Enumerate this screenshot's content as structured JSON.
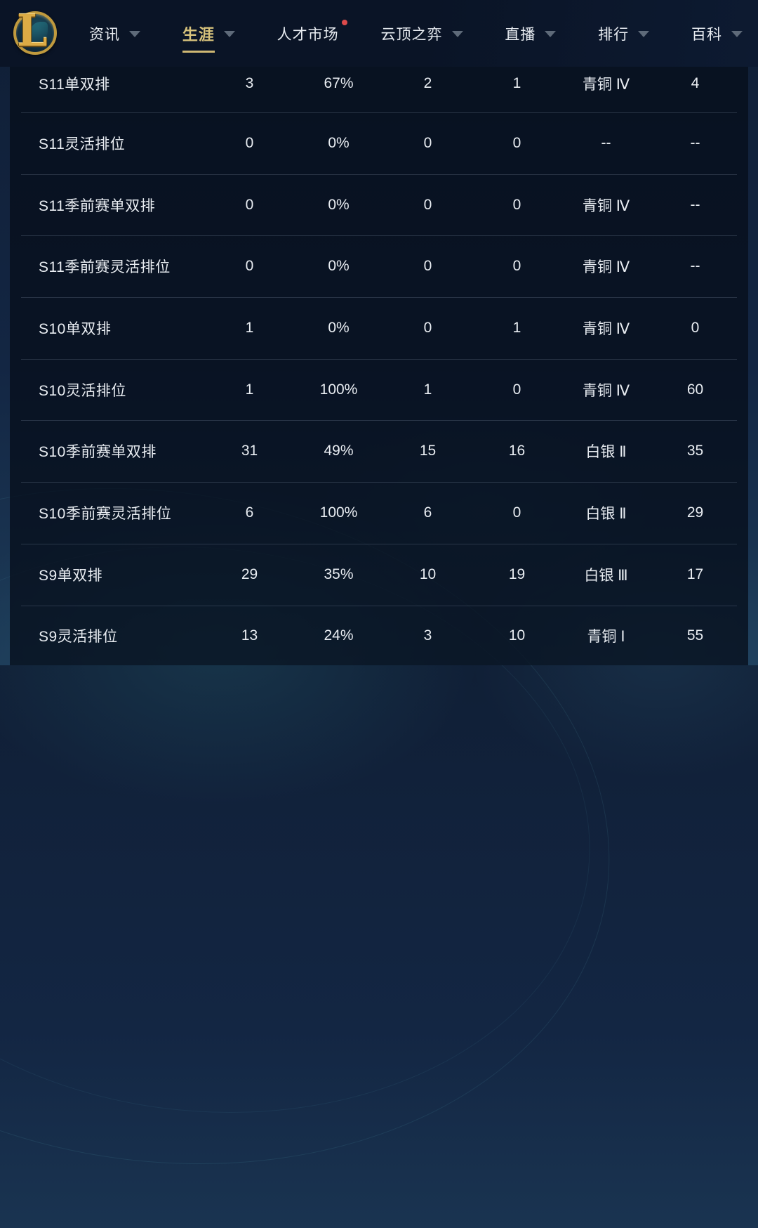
{
  "nav": {
    "logo_letter": "L",
    "items": [
      {
        "label": "资讯",
        "trailing": "chevron",
        "active": false
      },
      {
        "label": "生涯",
        "trailing": "chevron",
        "active": true
      },
      {
        "label": "人才市场",
        "trailing": "dot",
        "active": false
      },
      {
        "label": "云顶之弈",
        "trailing": "chevron",
        "active": false
      },
      {
        "label": "直播",
        "trailing": "chevron",
        "active": false
      },
      {
        "label": "排行",
        "trailing": "chevron",
        "active": false
      },
      {
        "label": "百科",
        "trailing": "chevron",
        "active": false
      }
    ]
  },
  "stats_table": {
    "rows": [
      {
        "mode": "S11单双排",
        "games": "3",
        "win_rate": "67%",
        "wins": "2",
        "losses": "1",
        "tier": "青铜 Ⅳ",
        "points": "4"
      },
      {
        "mode": "S11灵活排位",
        "games": "0",
        "win_rate": "0%",
        "wins": "0",
        "losses": "0",
        "tier": "--",
        "points": "--"
      },
      {
        "mode": "S11季前赛单双排",
        "games": "0",
        "win_rate": "0%",
        "wins": "0",
        "losses": "0",
        "tier": "青铜 Ⅳ",
        "points": "--"
      },
      {
        "mode": "S11季前赛灵活排位",
        "games": "0",
        "win_rate": "0%",
        "wins": "0",
        "losses": "0",
        "tier": "青铜 Ⅳ",
        "points": "--"
      },
      {
        "mode": "S10单双排",
        "games": "1",
        "win_rate": "0%",
        "wins": "0",
        "losses": "1",
        "tier": "青铜 Ⅳ",
        "points": "0"
      },
      {
        "mode": "S10灵活排位",
        "games": "1",
        "win_rate": "100%",
        "wins": "1",
        "losses": "0",
        "tier": "青铜 Ⅳ",
        "points": "60"
      },
      {
        "mode": "S10季前赛单双排",
        "games": "31",
        "win_rate": "49%",
        "wins": "15",
        "losses": "16",
        "tier": "白银 Ⅱ",
        "points": "35"
      },
      {
        "mode": "S10季前赛灵活排位",
        "games": "6",
        "win_rate": "100%",
        "wins": "6",
        "losses": "0",
        "tier": "白银 Ⅱ",
        "points": "29"
      },
      {
        "mode": "S9单双排",
        "games": "29",
        "win_rate": "35%",
        "wins": "10",
        "losses": "19",
        "tier": "白银 Ⅲ",
        "points": "17"
      },
      {
        "mode": "S9灵活排位",
        "games": "13",
        "win_rate": "24%",
        "wins": "3",
        "losses": "10",
        "tier": "青铜 Ⅰ",
        "points": "55"
      }
    ]
  },
  "colors": {
    "nav_bg": "#0a1426",
    "accent_gold": "#d8c37c",
    "notification_red": "#dd4a4b",
    "text": "#e9edf2"
  }
}
